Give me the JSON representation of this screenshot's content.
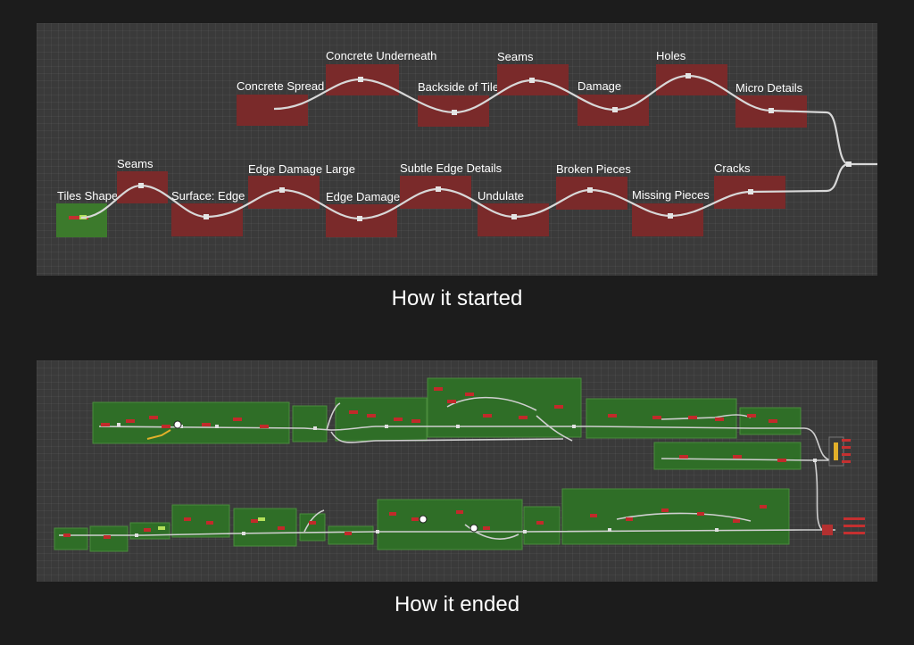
{
  "captions": {
    "started": "How it started",
    "ended": "How it ended"
  },
  "colors": {
    "red_node": "#7a2a2a",
    "green_node": "#3c7a2c",
    "wire": "#d8d8d8",
    "group_green": "#2f6e27"
  },
  "started_graph": {
    "row_top": [
      {
        "label": "Concrete Spread",
        "dir": "down"
      },
      {
        "label": "Concrete Underneath",
        "dir": "up"
      },
      {
        "label": "Backside of Tiles Marks",
        "dir": "down"
      },
      {
        "label": "Seams",
        "dir": "up"
      },
      {
        "label": "Damage",
        "dir": "down"
      },
      {
        "label": "Holes",
        "dir": "up"
      },
      {
        "label": "Micro Details",
        "dir": "down"
      }
    ],
    "row_bottom": [
      {
        "label": "Tiles Shape",
        "dir": "down"
      },
      {
        "label": "Seams",
        "dir": "up"
      },
      {
        "label": "Surface: Edge Soften",
        "dir": "down"
      },
      {
        "label": "Edge Damage Large",
        "dir": "up"
      },
      {
        "label": "Edge Damage Small",
        "dir": "down"
      },
      {
        "label": "Subtle Edge Details",
        "dir": "up"
      },
      {
        "label": "Undulate",
        "dir": "down"
      },
      {
        "label": "Broken Pieces",
        "dir": "up"
      },
      {
        "label": "Missing Pieces",
        "dir": "down"
      },
      {
        "label": "Cracks",
        "dir": "up"
      }
    ]
  }
}
